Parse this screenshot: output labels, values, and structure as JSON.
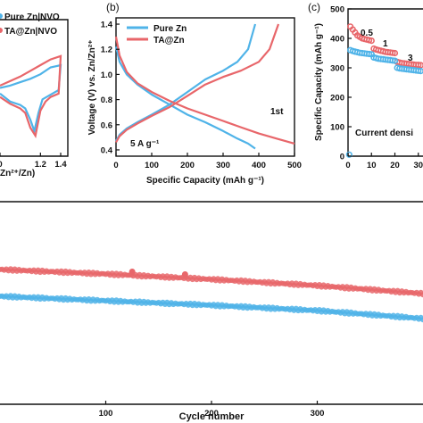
{
  "colors": {
    "blue": "#4FB3E8",
    "red": "#E8666A"
  },
  "chart_data": [
    {
      "id": "a",
      "type": "line",
      "panel_label": "",
      "xlabel_fragment": "Zn²⁺/Zn)",
      "x_ticks": [
        "0",
        "1.2",
        "1.4"
      ],
      "legend": [
        "Pure Zn|NVO",
        "TA@Zn|NVO"
      ],
      "legend_placement": "top-right",
      "series": [
        {
          "name": "Pure Zn|NVO",
          "color": "blue",
          "x": [
            0.8,
            0.9,
            1.0,
            1.05,
            1.1,
            1.14,
            1.18,
            1.22,
            1.3,
            1.38,
            1.4,
            1.3,
            1.2,
            1.1,
            1.0,
            0.9,
            0.8
          ],
          "y": [
            -0.05,
            -0.12,
            -0.15,
            -0.18,
            -0.28,
            -0.38,
            -0.22,
            -0.1,
            -0.06,
            -0.02,
            0.2,
            0.18,
            0.12,
            0.08,
            0.05,
            0.02,
            0.0
          ]
        },
        {
          "name": "TA@Zn|NVO",
          "color": "red",
          "x": [
            0.8,
            0.9,
            1.0,
            1.05,
            1.1,
            1.15,
            1.2,
            1.25,
            1.3,
            1.38,
            1.4,
            1.3,
            1.2,
            1.1,
            1.0,
            0.9,
            0.8
          ],
          "y": [
            -0.08,
            -0.14,
            -0.18,
            -0.22,
            -0.35,
            -0.42,
            -0.2,
            -0.12,
            -0.08,
            -0.05,
            0.28,
            0.25,
            0.2,
            0.15,
            0.1,
            0.06,
            0.02
          ]
        }
      ]
    },
    {
      "id": "b",
      "type": "line",
      "panel_label": "(b)",
      "xlabel": "Specific Capacity (mAh g⁻¹)",
      "ylabel": "Voltage (V) vs. Zn/Zn²⁺",
      "xlim": [
        0,
        500
      ],
      "ylim": [
        0.35,
        1.45
      ],
      "x_ticks": [
        0,
        100,
        200,
        300,
        400,
        500
      ],
      "y_ticks": [
        0.4,
        0.6,
        0.8,
        1.0,
        1.2,
        1.4
      ],
      "annotations": [
        "5 A g⁻¹",
        "1st"
      ],
      "legend_placement": "top",
      "series": [
        {
          "name": "Pure Zn",
          "color": "blue",
          "x": [
            0,
            10,
            30,
            60,
            100,
            150,
            200,
            250,
            300,
            340,
            370,
            390
          ],
          "y": [
            1.22,
            1.1,
            1.0,
            0.92,
            0.84,
            0.76,
            0.68,
            0.62,
            0.55,
            0.49,
            0.45,
            0.41
          ]
        },
        {
          "name": "Pure Zn",
          "color": "blue",
          "x": [
            0,
            10,
            30,
            60,
            100,
            150,
            200,
            250,
            300,
            340,
            370,
            390
          ],
          "y": [
            0.47,
            0.52,
            0.57,
            0.62,
            0.68,
            0.76,
            0.86,
            0.96,
            1.03,
            1.1,
            1.2,
            1.4
          ]
        },
        {
          "name": "TA@Zn",
          "color": "red",
          "x": [
            0,
            10,
            30,
            60,
            100,
            150,
            200,
            250,
            300,
            350,
            400,
            450,
            500
          ],
          "y": [
            1.3,
            1.15,
            1.02,
            0.93,
            0.86,
            0.79,
            0.73,
            0.68,
            0.63,
            0.58,
            0.53,
            0.49,
            0.45
          ]
        },
        {
          "name": "TA@Zn",
          "color": "red",
          "x": [
            0,
            10,
            30,
            60,
            100,
            150,
            200,
            250,
            300,
            350,
            400,
            430,
            455
          ],
          "y": [
            0.46,
            0.51,
            0.56,
            0.61,
            0.67,
            0.74,
            0.83,
            0.92,
            0.98,
            1.03,
            1.1,
            1.2,
            1.4
          ]
        }
      ]
    },
    {
      "id": "c",
      "type": "scatter",
      "panel_label": "(c)",
      "ylabel": "Specific Capacity (mAh g⁻¹)",
      "xlim": [
        0,
        32
      ],
      "ylim": [
        0,
        500
      ],
      "x_ticks": [
        0,
        10,
        20,
        30
      ],
      "y_ticks": [
        0,
        100,
        200,
        300,
        400,
        500
      ],
      "annotations": [
        "0.5",
        "1",
        "3",
        "Current densi"
      ],
      "series": [
        {
          "name": "TA@Zn",
          "color": "red",
          "x": [
            1,
            2,
            3,
            4,
            5,
            6,
            7,
            8,
            9,
            10,
            11,
            12,
            13,
            14,
            15,
            16,
            17,
            18,
            19,
            20,
            21,
            22,
            23,
            24,
            25,
            26,
            27,
            28,
            29,
            30,
            31
          ],
          "y": [
            440,
            430,
            420,
            410,
            405,
            400,
            398,
            396,
            394,
            392,
            365,
            362,
            360,
            358,
            356,
            354,
            353,
            352,
            351,
            350,
            320,
            318,
            316,
            315,
            314,
            313,
            312,
            311,
            310,
            310,
            309
          ]
        },
        {
          "name": "Pure Zn",
          "color": "blue",
          "x": [
            1,
            2,
            3,
            4,
            5,
            6,
            7,
            8,
            9,
            10,
            11,
            12,
            13,
            14,
            15,
            16,
            17,
            18,
            19,
            20,
            21,
            22,
            23,
            24,
            25,
            26,
            27,
            28,
            29,
            30,
            31
          ],
          "y": [
            360,
            357,
            355,
            353,
            351,
            350,
            349,
            348,
            347,
            346,
            335,
            333,
            331,
            330,
            329,
            328,
            327,
            326,
            325,
            324,
            300,
            298,
            297,
            296,
            295,
            294,
            293,
            292,
            291,
            290,
            289
          ]
        },
        {
          "name": "start",
          "color": "blue",
          "x": [
            0.5
          ],
          "y": [
            5
          ]
        }
      ]
    },
    {
      "id": "d",
      "type": "scatter",
      "xlabel": "Cycle number",
      "xlim": [
        0,
        400
      ],
      "x_ticks": [
        100,
        200,
        300
      ],
      "series": [
        {
          "name": "TA@Zn",
          "color": "red",
          "x": [
            0,
            100,
            200,
            300,
            400
          ],
          "y": [
            302,
            307,
            313,
            320,
            329
          ]
        },
        {
          "name": "Pure Zn",
          "color": "blue",
          "x": [
            0,
            100,
            200,
            300,
            400
          ],
          "y": [
            332,
            337,
            342,
            348,
            357
          ]
        }
      ]
    }
  ]
}
